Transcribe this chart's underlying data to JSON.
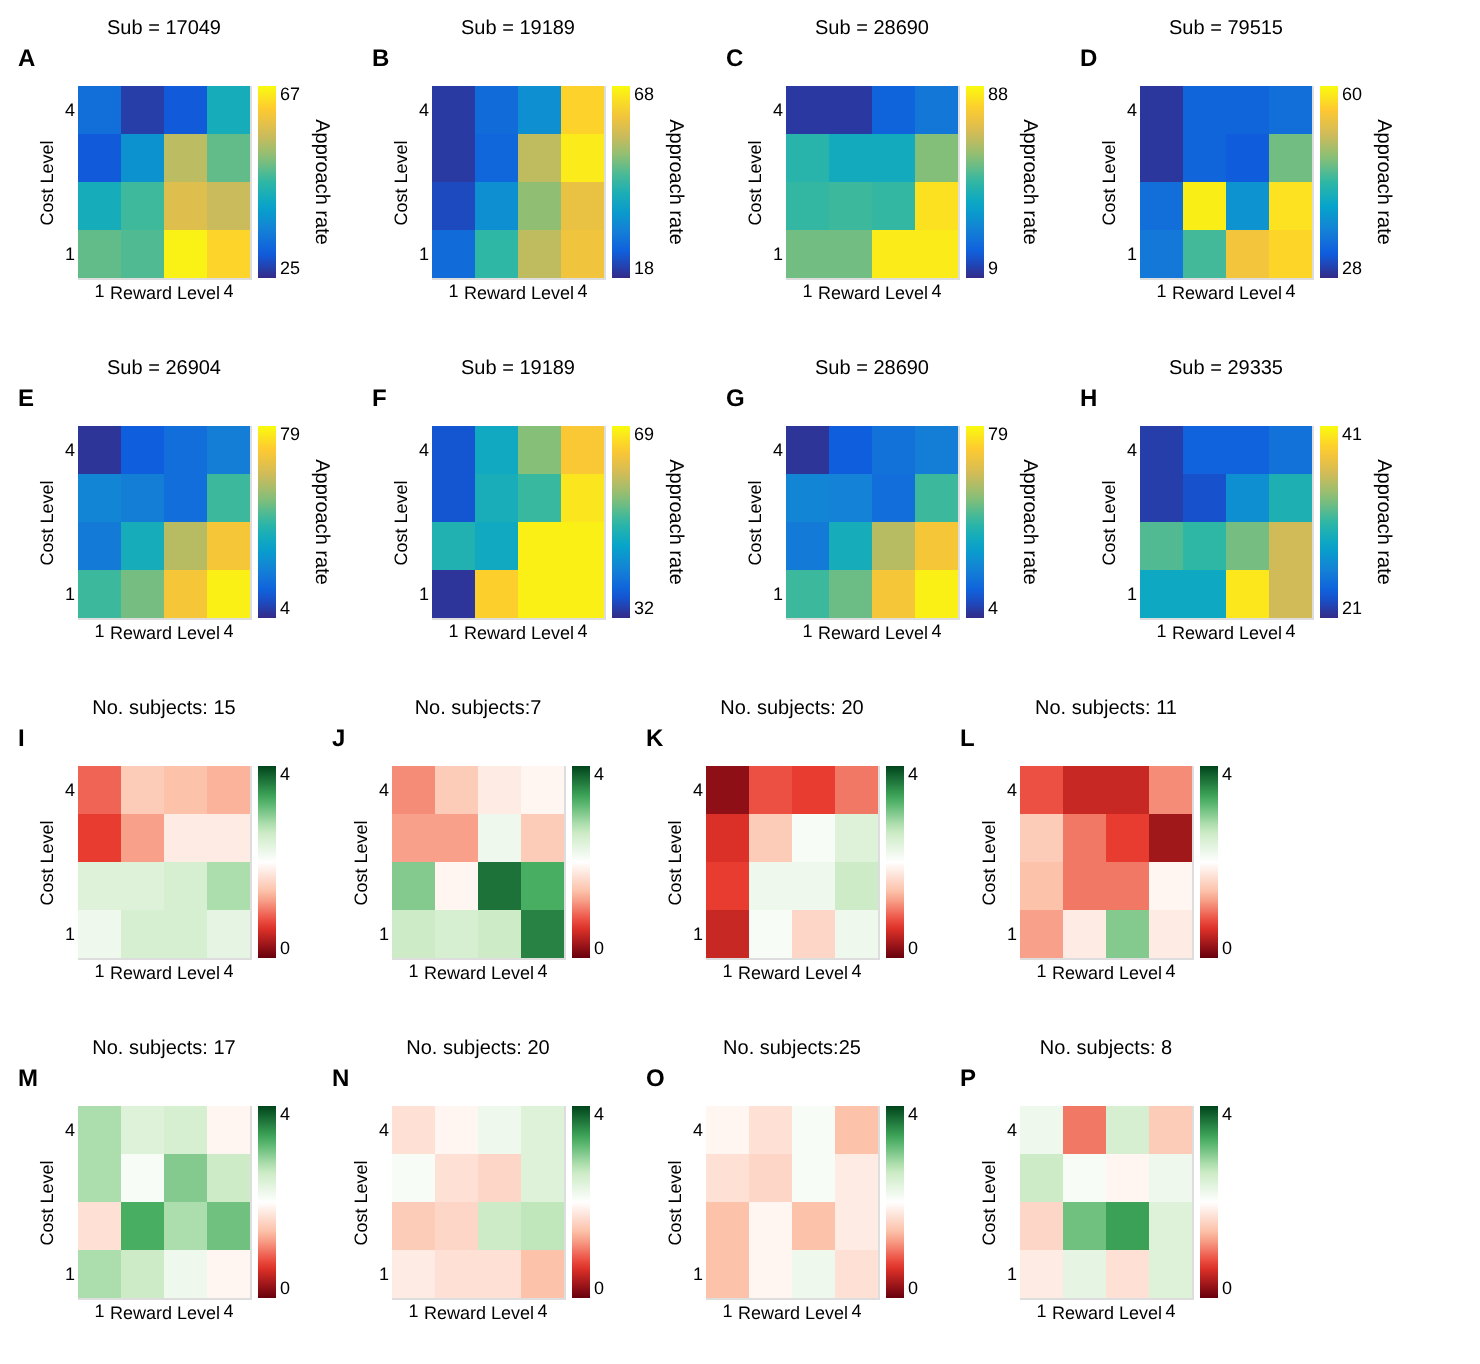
{
  "chart_data": [
    {
      "type": "heatmap",
      "title": "Sub = 17049",
      "annotations": [
        "A"
      ],
      "xlabel": "Reward Level",
      "ylabel": "Cost Level",
      "clabel": "Approach rate",
      "categories": [
        "1",
        null,
        null,
        "4"
      ],
      "y_categories": [
        "4",
        null,
        null,
        "1"
      ],
      "clim": [
        25,
        67
      ],
      "cticks": [
        25,
        67
      ],
      "cells": [
        [
          33,
          27,
          30,
          43
        ],
        [
          30,
          38,
          55,
          49
        ],
        [
          43,
          47,
          58,
          56
        ],
        [
          49,
          48,
          66,
          63
        ]
      ]
    },
    {
      "type": "heatmap",
      "title": "Sub = 19189",
      "annotations": [
        "B"
      ],
      "xlabel": "Reward Level",
      "ylabel": "Cost Level",
      "clabel": "Approach rate",
      "categories": [
        "1",
        null,
        null,
        "4"
      ],
      "y_categories": [
        "4",
        null,
        null,
        "1"
      ],
      "clim": [
        18,
        68
      ],
      "cticks": [
        18,
        68
      ],
      "cells": [
        [
          20,
          27,
          33,
          63
        ],
        [
          20,
          26,
          54,
          66
        ],
        [
          22,
          33,
          50,
          59
        ],
        [
          27,
          43,
          54,
          60
        ]
      ]
    },
    {
      "type": "heatmap",
      "title": "Sub = 28690",
      "annotations": [
        "C"
      ],
      "xlabel": "Reward Level",
      "ylabel": "Cost Level",
      "clabel": "Approach rate",
      "categories": [
        "1",
        null,
        null,
        "4"
      ],
      "y_categories": [
        "4",
        null,
        null,
        "1"
      ],
      "clim": [
        9,
        88
      ],
      "cticks": [
        9,
        88
      ],
      "cells": [
        [
          12,
          12,
          21,
          26
        ],
        [
          47,
          42,
          42,
          58
        ],
        [
          49,
          50,
          49,
          83
        ],
        [
          56,
          56,
          85,
          85
        ]
      ]
    },
    {
      "type": "heatmap",
      "title": "Sub = 79515",
      "annotations": [
        "D"
      ],
      "xlabel": "Reward Level",
      "ylabel": "Cost Level",
      "clabel": "Approach rate",
      "categories": [
        "1",
        null,
        null,
        "4"
      ],
      "y_categories": [
        "4",
        null,
        null,
        "1"
      ],
      "clim": [
        28,
        60
      ],
      "cticks": [
        28,
        60
      ],
      "cells": [
        [
          29,
          33,
          33,
          34
        ],
        [
          29,
          33,
          32,
          47
        ],
        [
          34,
          59,
          38,
          58
        ],
        [
          35,
          45,
          55,
          57
        ]
      ]
    },
    {
      "type": "heatmap",
      "title": "Sub = 26904",
      "annotations": [
        "E"
      ],
      "xlabel": "Reward Level",
      "ylabel": "Cost Level",
      "clabel": "Approach rate",
      "categories": [
        "1",
        null,
        null,
        "4"
      ],
      "y_categories": [
        "4",
        null,
        null,
        "1"
      ],
      "clim": [
        4,
        79
      ],
      "cticks": [
        4,
        79
      ],
      "cells": [
        [
          6,
          14,
          18,
          22
        ],
        [
          24,
          22,
          18,
          43
        ],
        [
          21,
          36,
          57,
          68
        ],
        [
          43,
          49,
          68,
          77
        ]
      ]
    },
    {
      "type": "heatmap",
      "title": "Sub = 19189",
      "annotations": [
        "F"
      ],
      "xlabel": "Reward Level",
      "ylabel": "Cost Level",
      "clabel": "Approach rate",
      "categories": [
        "1",
        null,
        null,
        "4"
      ],
      "y_categories": [
        "4",
        null,
        null,
        "1"
      ],
      "clim": [
        32,
        69
      ],
      "cticks": [
        32,
        69
      ],
      "cells": [
        [
          36,
          47,
          55,
          64
        ],
        [
          36,
          48,
          51,
          67
        ],
        [
          49,
          47,
          68,
          68
        ],
        [
          33,
          65,
          68,
          68
        ]
      ]
    },
    {
      "type": "heatmap",
      "title": "Sub = 28690",
      "annotations": [
        "G"
      ],
      "xlabel": "Reward Level",
      "ylabel": "Cost Level",
      "clabel": "Approach rate",
      "categories": [
        "1",
        null,
        null,
        "4"
      ],
      "y_categories": [
        "4",
        null,
        null,
        "1"
      ],
      "clim": [
        4,
        79
      ],
      "cticks": [
        4,
        79
      ],
      "cells": [
        [
          6,
          14,
          19,
          22
        ],
        [
          24,
          23,
          18,
          43
        ],
        [
          21,
          36,
          57,
          68
        ],
        [
          43,
          48,
          68,
          77
        ]
      ]
    },
    {
      "type": "heatmap",
      "title": "Sub = 29335",
      "annotations": [
        "H"
      ],
      "xlabel": "Reward Level",
      "ylabel": "Cost Level",
      "clabel": "Approach rate",
      "categories": [
        "1",
        null,
        null,
        "4"
      ],
      "y_categories": [
        "4",
        null,
        null,
        "1"
      ],
      "clim": [
        21,
        41
      ],
      "cticks": [
        21,
        41
      ],
      "cells": [
        [
          22,
          24,
          24,
          25
        ],
        [
          22,
          23,
          27,
          30
        ],
        [
          32,
          31,
          33,
          36
        ],
        [
          29,
          29,
          40,
          36
        ]
      ]
    },
    {
      "type": "heatmap",
      "title": "No. subjects: 15",
      "annotations": [
        "I"
      ],
      "xlabel": "Reward Level",
      "ylabel": "Cost Level",
      "categories": [
        "1",
        null,
        null,
        "4"
      ],
      "y_categories": [
        "4",
        null,
        null,
        "1"
      ],
      "clim": [
        0,
        4
      ],
      "cticks": [
        0,
        4
      ],
      "cells": [
        [
          0.9,
          1.5,
          1.4,
          1.3
        ],
        [
          0.7,
          1.2,
          1.8,
          1.8
        ],
        [
          2.4,
          2.4,
          2.5,
          2.8
        ],
        [
          2.2,
          2.5,
          2.5,
          2.3
        ]
      ]
    },
    {
      "type": "heatmap",
      "title": "No. subjects:7",
      "annotations": [
        "J"
      ],
      "xlabel": "Reward Level",
      "ylabel": "Cost Level",
      "categories": [
        "1",
        null,
        null,
        "4"
      ],
      "y_categories": [
        "4",
        null,
        null,
        "1"
      ],
      "clim": [
        0,
        4
      ],
      "cticks": [
        0,
        4
      ],
      "cells": [
        [
          1.1,
          1.5,
          1.8,
          1.9
        ],
        [
          1.2,
          1.2,
          2.2,
          1.5
        ],
        [
          3.0,
          1.9,
          3.7,
          3.3
        ],
        [
          2.6,
          2.5,
          2.6,
          3.6
        ]
      ]
    },
    {
      "type": "heatmap",
      "title": "No. subjects: 20",
      "annotations": [
        "K"
      ],
      "xlabel": "Reward Level",
      "ylabel": "Cost Level",
      "categories": [
        "1",
        null,
        null,
        "4"
      ],
      "y_categories": [
        "4",
        null,
        null,
        "1"
      ],
      "clim": [
        0,
        4
      ],
      "cticks": [
        0,
        4
      ],
      "cells": [
        [
          0.2,
          0.8,
          0.7,
          1.0
        ],
        [
          0.6,
          1.5,
          2.1,
          2.4
        ],
        [
          0.7,
          2.2,
          2.2,
          2.6
        ],
        [
          0.5,
          2.1,
          1.6,
          2.2
        ]
      ]
    },
    {
      "type": "heatmap",
      "title": "No. subjects: 11",
      "annotations": [
        "L"
      ],
      "xlabel": "Reward Level",
      "ylabel": "Cost Level",
      "categories": [
        "1",
        null,
        null,
        "4"
      ],
      "y_categories": [
        "4",
        null,
        null,
        "1"
      ],
      "clim": [
        0,
        4
      ],
      "cticks": [
        0,
        4
      ],
      "cells": [
        [
          0.8,
          0.5,
          0.5,
          1.1
        ],
        [
          1.5,
          1.0,
          0.7,
          0.3
        ],
        [
          1.4,
          1.0,
          1.0,
          1.9
        ],
        [
          1.2,
          1.8,
          3.0,
          1.8
        ]
      ]
    },
    {
      "type": "heatmap",
      "title": "No. subjects: 17",
      "annotations": [
        "M"
      ],
      "xlabel": "Reward Level",
      "ylabel": "Cost Level",
      "categories": [
        "1",
        null,
        null,
        "4"
      ],
      "y_categories": [
        "4",
        null,
        null,
        "1"
      ],
      "clim": [
        0,
        4
      ],
      "cticks": [
        0,
        4
      ],
      "cells": [
        [
          2.8,
          2.4,
          2.5,
          1.9
        ],
        [
          2.8,
          2.1,
          3.0,
          2.6
        ],
        [
          1.7,
          3.3,
          2.8,
          3.1
        ],
        [
          2.8,
          2.6,
          2.2,
          1.9
        ]
      ]
    },
    {
      "type": "heatmap",
      "title": "No. subjects: 20",
      "annotations": [
        "N"
      ],
      "xlabel": "Reward Level",
      "ylabel": "Cost Level",
      "categories": [
        "1",
        null,
        null,
        "4"
      ],
      "y_categories": [
        "4",
        null,
        null,
        "1"
      ],
      "clim": [
        0,
        4
      ],
      "cticks": [
        0,
        4
      ],
      "cells": [
        [
          1.7,
          1.9,
          2.2,
          2.4
        ],
        [
          2.1,
          1.7,
          1.6,
          2.4
        ],
        [
          1.5,
          1.6,
          2.6,
          2.7
        ],
        [
          1.8,
          1.7,
          1.7,
          1.4
        ]
      ]
    },
    {
      "type": "heatmap",
      "title": "No. subjects:25",
      "annotations": [
        "O"
      ],
      "xlabel": "Reward Level",
      "ylabel": "Cost Level",
      "categories": [
        "1",
        null,
        null,
        "4"
      ],
      "y_categories": [
        "4",
        null,
        null,
        "1"
      ],
      "clim": [
        0,
        4
      ],
      "cticks": [
        0,
        4
      ],
      "cells": [
        [
          1.9,
          1.7,
          2.1,
          1.4
        ],
        [
          1.7,
          1.6,
          2.1,
          1.8
        ],
        [
          1.4,
          1.9,
          1.4,
          1.8
        ],
        [
          1.4,
          1.9,
          2.2,
          1.7
        ]
      ]
    },
    {
      "type": "heatmap",
      "title": "No. subjects: 8",
      "annotations": [
        "P"
      ],
      "xlabel": "Reward Level",
      "ylabel": "Cost Level",
      "categories": [
        "1",
        null,
        null,
        "4"
      ],
      "y_categories": [
        "4",
        null,
        null,
        "1"
      ],
      "clim": [
        0,
        4
      ],
      "cticks": [
        0,
        4
      ],
      "cells": [
        [
          2.2,
          1.0,
          2.5,
          1.5
        ],
        [
          2.6,
          2.1,
          1.9,
          2.2
        ],
        [
          1.6,
          3.1,
          3.4,
          2.4
        ],
        [
          1.8,
          2.3,
          1.7,
          2.4
        ]
      ]
    }
  ]
}
